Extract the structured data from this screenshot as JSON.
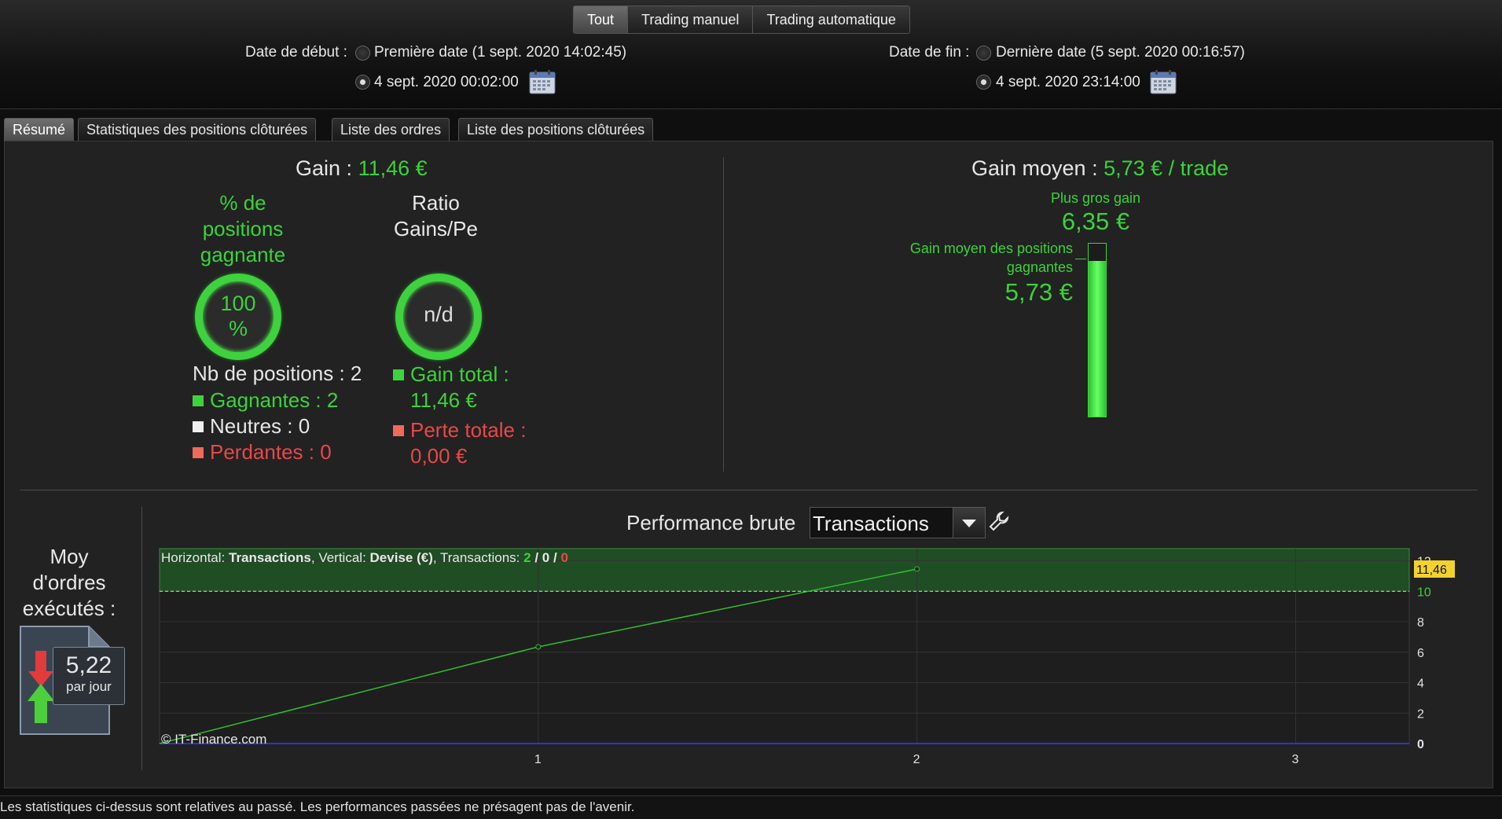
{
  "top": {
    "segments": [
      {
        "label": "Tout",
        "active": true
      },
      {
        "label": "Trading manuel",
        "active": false
      },
      {
        "label": "Trading automatique",
        "active": false
      }
    ],
    "start_label": "Date de début :",
    "start_first": "Première date (1 sept. 2020 14:02:45)",
    "start_custom": "4 sept. 2020 00:02:00",
    "end_label": "Date de fin :",
    "end_last": "Dernière date (5 sept. 2020 00:16:57)",
    "end_custom": "4 sept. 2020 23:14:00",
    "calendar_icon": "calendar-icon"
  },
  "tabs": [
    {
      "label": "Résumé",
      "active": true
    },
    {
      "label": "Statistiques des positions clôturées",
      "active": false
    },
    {
      "label": "Liste des ordres",
      "active": false
    },
    {
      "label": "Liste des positions clôturées",
      "active": false
    }
  ],
  "summary": {
    "gain_label": "Gain :",
    "gain_value": "11,46 €",
    "pct_title_1": "% de",
    "pct_title_2": "positions",
    "pct_title_3": "gagnante",
    "pct_value_1": "100",
    "pct_value_2": "%",
    "ratio_title_1": "Ratio",
    "ratio_title_2": "Gains/Pe",
    "ratio_value": "n/d",
    "nb_positions": "Nb de positions : 2",
    "gagnantes": "Gagnantes : 2",
    "neutres": "Neutres : 0",
    "perdantes": "Perdantes : 0",
    "gain_total_label": "Gain total :",
    "gain_total_value": "11,46 €",
    "perte_totale_label": "Perte totale :",
    "perte_totale_value": "0,00 €",
    "gain_moyen_label": "Gain moyen :",
    "gain_moyen_value": "5,73 € / trade",
    "plus_gros_gain_label": "Plus gros gain",
    "plus_gros_gain_value": "6,35 €",
    "gain_moyen_pos_label_1": "Gain moyen des positions",
    "gain_moyen_pos_label_2": "gagnantes",
    "gain_moyen_pos_value": "5,73 €",
    "bar_fill_ratio": 0.902
  },
  "orders": {
    "title_1": "Moy",
    "title_2": "d'ordres",
    "title_3": "exécutés :",
    "value": "5,22",
    "unit": "par jour"
  },
  "performance": {
    "title": "Performance brute",
    "dropdown_value": "Transactions",
    "info_h_label": "Horizontal:",
    "info_h_value": "Transactions",
    "info_v_label": ", Vertical:",
    "info_v_value": "Devise (€)",
    "info_t_label": ", Transactions:",
    "info_t_win": "2",
    "info_t_neutral": "0",
    "info_t_loss": "0",
    "info_sep": " / ",
    "watermark": "© IT-Finance.com",
    "current_value_badge": "11,46",
    "colors": {
      "line": "#2fbf2f",
      "zero": "#3a3aff",
      "band": "#1f4d24",
      "badge": "#f3d32b"
    }
  },
  "chart_data": {
    "type": "line",
    "x": [
      0,
      1,
      2
    ],
    "series": [
      {
        "values": [
          0,
          6.35,
          11.46
        ]
      }
    ],
    "xticks": [
      "1",
      "2",
      "3"
    ],
    "yticks": [
      "0",
      "2",
      "4",
      "6",
      "8",
      "10",
      "12"
    ],
    "xlim": [
      0,
      3.3
    ],
    "ylim": [
      0,
      12.8
    ],
    "target_level": 10,
    "grid": true
  },
  "footer": "Les statistiques ci-dessus sont relatives au passé. Les performances passées ne présagent pas de l'avenir."
}
